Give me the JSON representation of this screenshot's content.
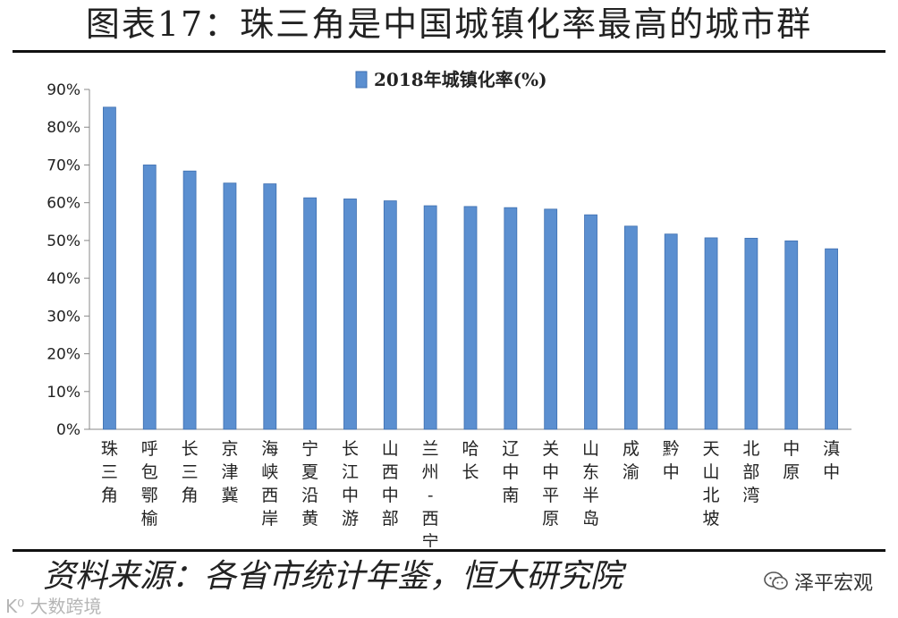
{
  "title": "图表17：珠三角是中国城镇化率最高的城市群",
  "source": "资料来源：各省市统计年鉴，恒大研究院",
  "brand": "泽平宏观",
  "watermark": "K⁰ 大数跨境",
  "colors": {
    "bar": "#5b8fd0",
    "bar_edge": "#3e6fb0",
    "axis": "#888888"
  },
  "chart_data": {
    "type": "bar",
    "title": "",
    "xlabel": "",
    "ylabel": "",
    "ylim": [
      0,
      90
    ],
    "yticks": [
      "0%",
      "10%",
      "20%",
      "30%",
      "40%",
      "50%",
      "60%",
      "70%",
      "80%",
      "90%"
    ],
    "legend": {
      "label": "2018年城镇化率(%)",
      "position": "top-center"
    },
    "grid": false,
    "categories": [
      "珠三角",
      "呼包鄂榆",
      "长三角",
      "京津冀",
      "海峡西岸",
      "宁夏沿黄",
      "长江中游",
      "山西中部",
      "兰州-西宁",
      "哈长",
      "辽中南",
      "关中平原",
      "山东半岛",
      "成渝",
      "黔中",
      "天山北坡",
      "北部湾",
      "中原",
      "滇中"
    ],
    "series": [
      {
        "name": "2018年城镇化率(%)",
        "values": [
          85.3,
          70.0,
          68.4,
          65.2,
          65.0,
          61.3,
          61.0,
          60.5,
          59.2,
          59.0,
          58.7,
          58.3,
          56.8,
          53.8,
          51.7,
          50.7,
          50.6,
          49.9,
          47.8
        ]
      }
    ]
  }
}
